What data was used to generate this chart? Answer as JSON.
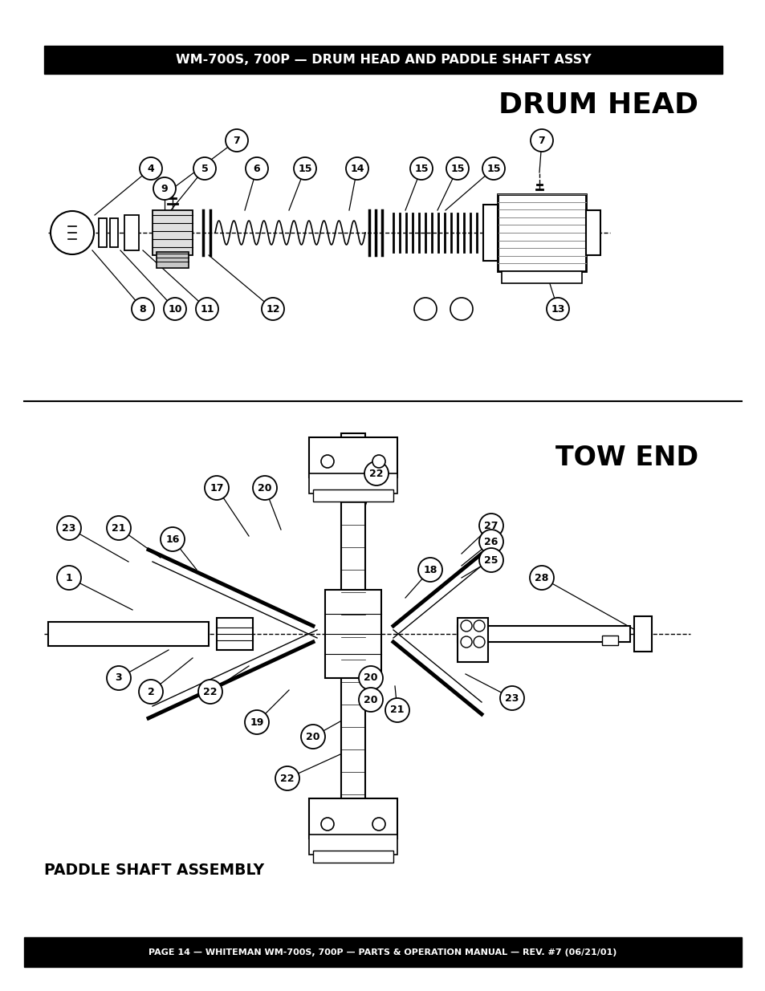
{
  "title_banner": "WM-700S, 700P — DRUM HEAD AND PADDLE SHAFT ASSY",
  "footer_banner": "PAGE 14 — WHITEMAN WM-700S, 700P — PARTS & OPERATION MANUAL — REV. #7 (06/21/01)",
  "section1_title": "DRUM HEAD",
  "section2_title": "TOW END",
  "section3_title": "PADDLE SHAFT ASSEMBLY",
  "bg_color": "#ffffff",
  "banner_bg": "#000000",
  "banner_fg": "#ffffff",
  "figw": 9.54,
  "figh": 12.35,
  "dpi": 100
}
